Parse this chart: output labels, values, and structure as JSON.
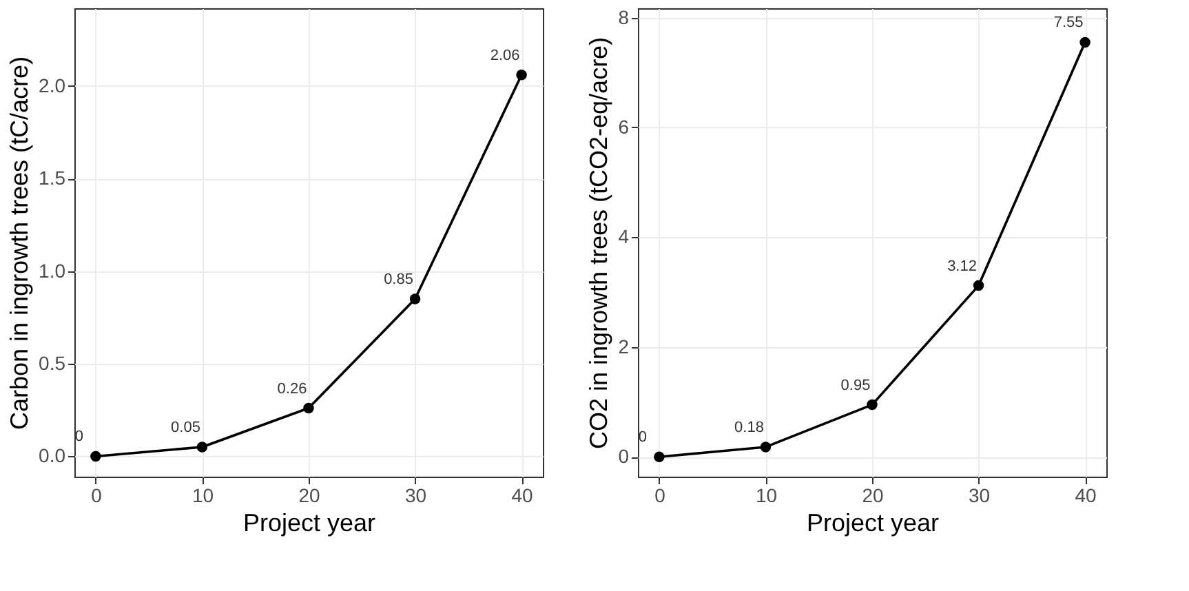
{
  "chart_data": [
    {
      "type": "line",
      "x": [
        0,
        10,
        20,
        30,
        40
      ],
      "values": [
        0,
        0.05,
        0.26,
        0.85,
        2.06
      ],
      "color": "#000000",
      "marker": "circle",
      "line_style": "solid",
      "data_labels": true,
      "xlabel": "Project year",
      "ylabel": "Carbon in ingrowth trees (tC/acre)",
      "xlim": [
        -2,
        42
      ],
      "xticks": [
        0,
        10,
        20,
        30,
        40
      ],
      "ylim": [
        -0.11,
        2.42
      ],
      "yticks": [
        {
          "value": 0,
          "label": "0.0"
        },
        0.5,
        {
          "value": 1,
          "label": "1.0"
        },
        1.5,
        {
          "value": 2,
          "label": "2.0"
        }
      ],
      "grid": true
    },
    {
      "type": "line",
      "x": [
        0,
        10,
        20,
        30,
        40
      ],
      "values": [
        0,
        0.18,
        0.95,
        3.12,
        7.55
      ],
      "color": "#000000",
      "marker": "circle",
      "line_style": "solid",
      "data_labels": true,
      "xlabel": "Project year",
      "ylabel": "CO2 in ingrowth trees (tCO2-eq/acre)",
      "xlim": [
        -2,
        42
      ],
      "xticks": [
        0,
        10,
        20,
        30,
        40
      ],
      "ylim": [
        -0.36,
        8.17
      ],
      "yticks": [
        0,
        2,
        4,
        6,
        8
      ],
      "grid": true
    }
  ]
}
